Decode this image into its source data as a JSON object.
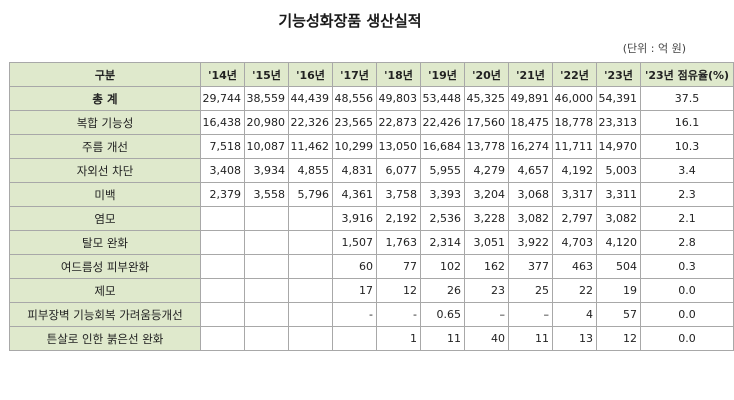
{
  "title": "기능성화장품 생산실적",
  "unit": "(단위 : 억 원)",
  "table": {
    "headers": [
      "구분",
      "'14년",
      "'15년",
      "'16년",
      "'17년",
      "'18년",
      "'19년",
      "'20년",
      "'21년",
      "'22년",
      "'23년",
      "'23년 점유율(%)"
    ],
    "rows": [
      {
        "name": "총 계",
        "values": [
          "29,744",
          "38,559",
          "44,439",
          "48,556",
          "49,803",
          "53,448",
          "45,325",
          "49,891",
          "46,000",
          "54,391",
          "37.5"
        ]
      },
      {
        "name": "복합 기능성",
        "values": [
          "16,438",
          "20,980",
          "22,326",
          "23,565",
          "22,873",
          "22,426",
          "17,560",
          "18,475",
          "18,778",
          "23,313",
          "16.1"
        ]
      },
      {
        "name": "주름 개선",
        "values": [
          "7,518",
          "10,087",
          "11,462",
          "10,299",
          "13,050",
          "16,684",
          "13,778",
          "16,274",
          "11,711",
          "14,970",
          "10.3"
        ]
      },
      {
        "name": "자외선 차단",
        "values": [
          "3,408",
          "3,934",
          "4,855",
          "4,831",
          "6,077",
          "5,955",
          "4,279",
          "4,657",
          "4,192",
          "5,003",
          "3.4"
        ]
      },
      {
        "name": "미백",
        "values": [
          "2,379",
          "3,558",
          "5,796",
          "4,361",
          "3,758",
          "3,393",
          "3,204",
          "3,068",
          "3,317",
          "3,311",
          "2.3"
        ]
      },
      {
        "name": "염모",
        "values": [
          "",
          "",
          "",
          "3,916",
          "2,192",
          "2,536",
          "3,228",
          "3,082",
          "2,797",
          "3,082",
          "2.1"
        ]
      },
      {
        "name": "탈모 완화",
        "values": [
          "",
          "",
          "",
          "1,507",
          "1,763",
          "2,314",
          "3,051",
          "3,922",
          "4,703",
          "4,120",
          "2.8"
        ]
      },
      {
        "name": "여드름성 피부완화",
        "values": [
          "",
          "",
          "",
          "60",
          "77",
          "102",
          "162",
          "377",
          "463",
          "504",
          "0.3"
        ]
      },
      {
        "name": "제모",
        "values": [
          "",
          "",
          "",
          "17",
          "12",
          "26",
          "23",
          "25",
          "22",
          "19",
          "0.0"
        ]
      },
      {
        "name": "피부장벽 기능회복 가려움등개선",
        "values": [
          "",
          "",
          "",
          "-",
          "-",
          "0.65",
          "–",
          "–",
          "4",
          "57",
          "0.0"
        ]
      },
      {
        "name": "튼살로 인한 붉은선 완화",
        "values": [
          "",
          "",
          "",
          "",
          "1",
          "11",
          "40",
          "11",
          "13",
          "12",
          "0.0"
        ]
      }
    ]
  }
}
